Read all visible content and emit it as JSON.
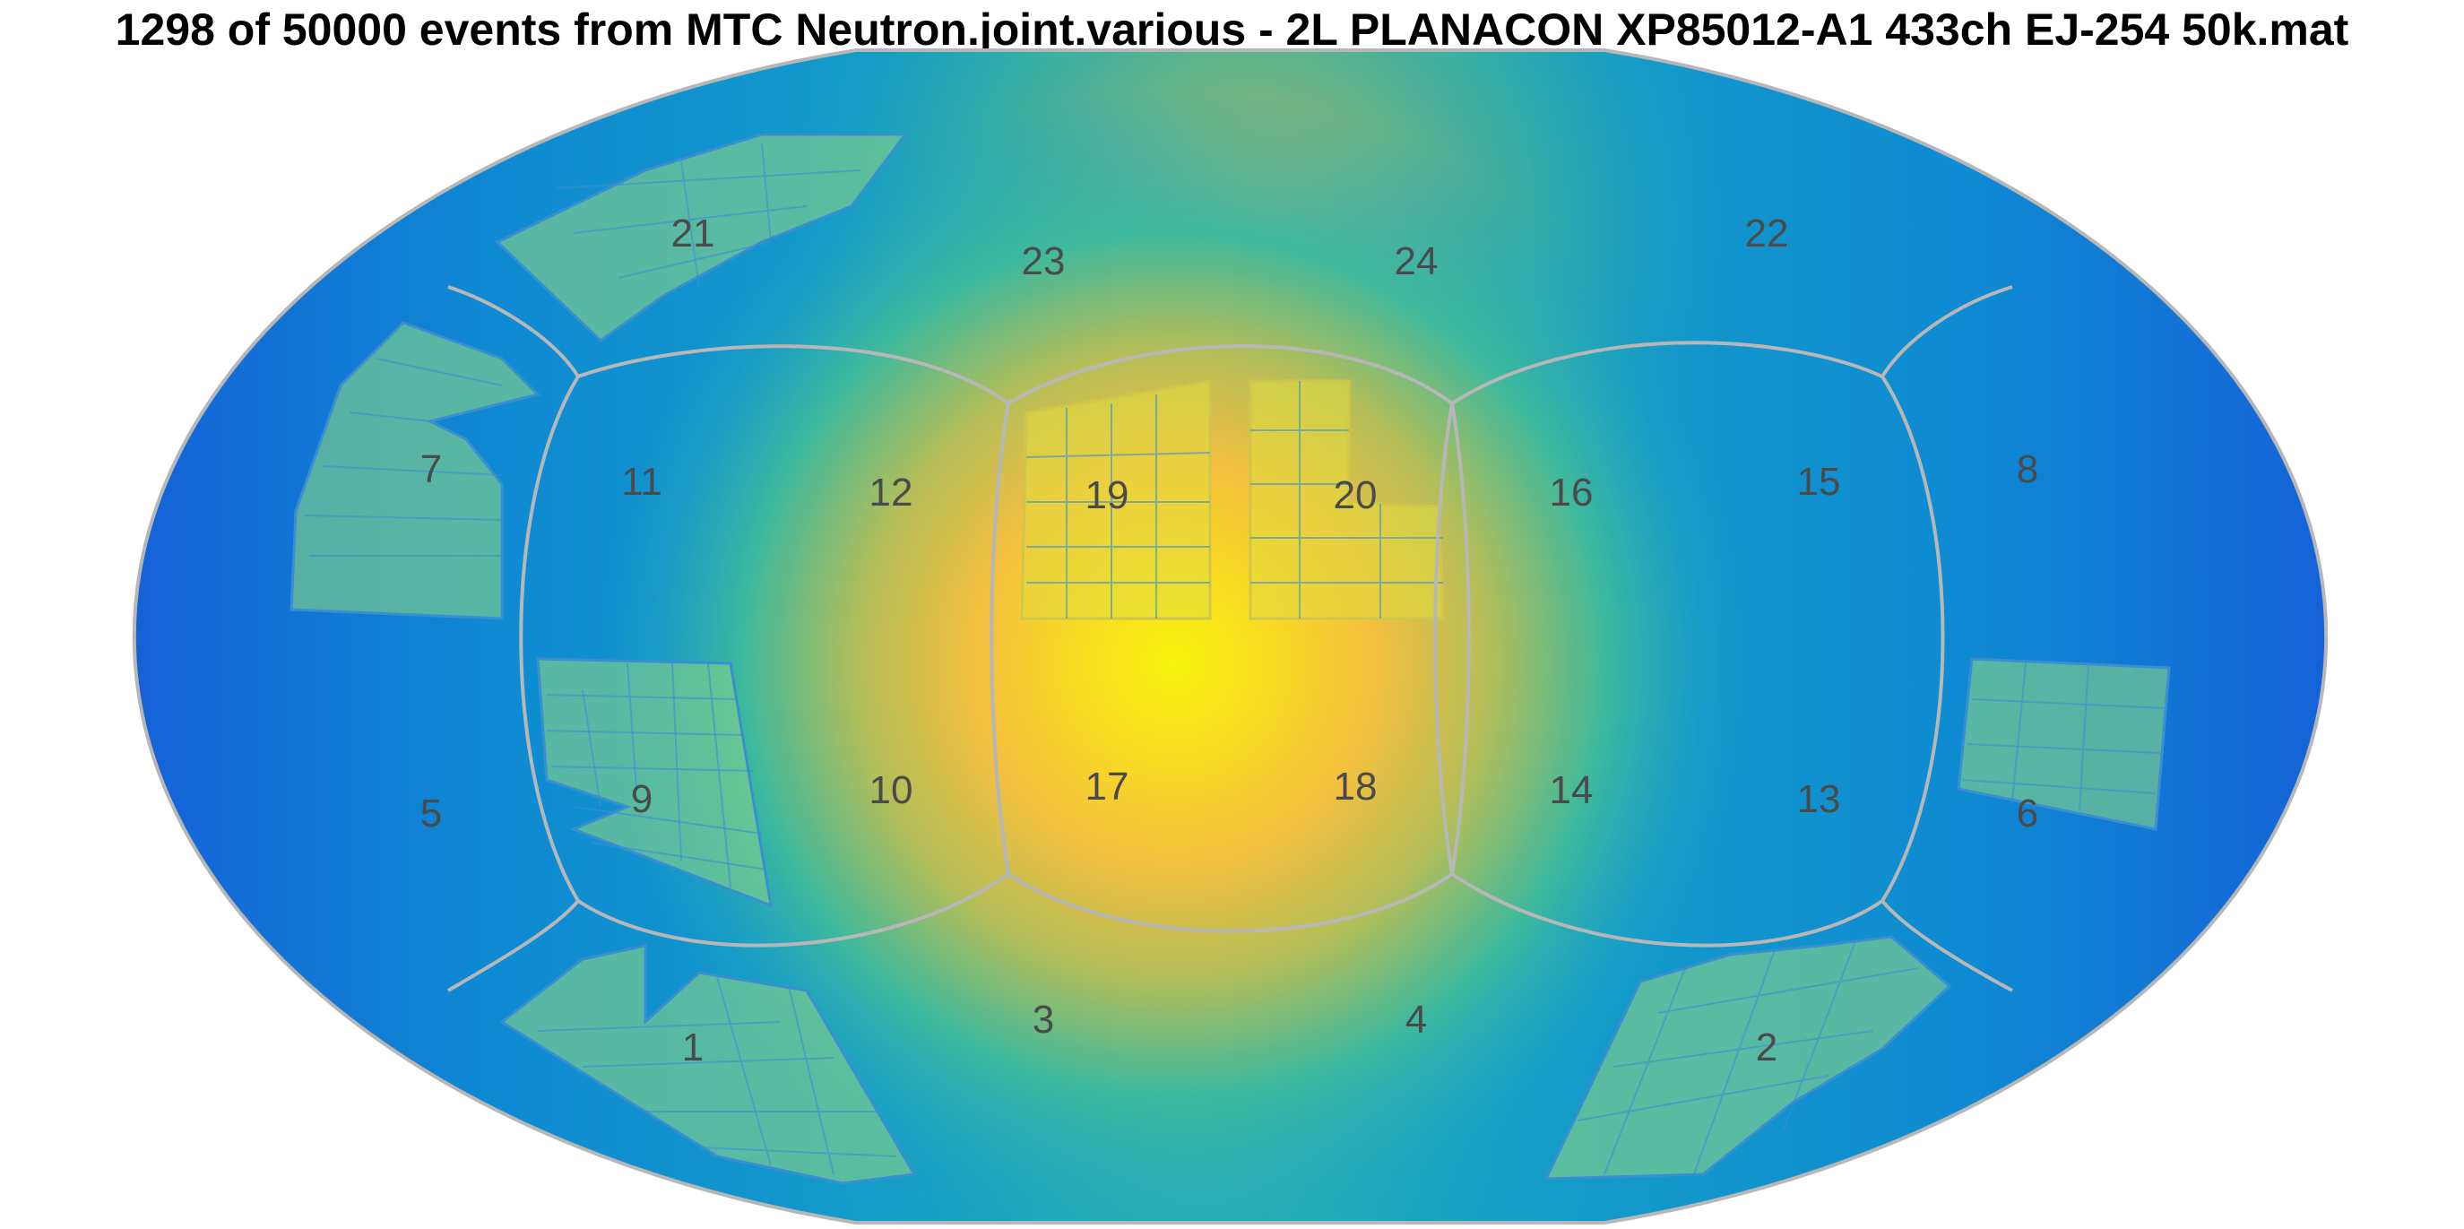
{
  "title": "1298 of 50000 events from MTC Neutron.joint.various - 2L PLANACON XP85012-A1 433ch EJ-254 50k.mat",
  "colors": {
    "hotspot": "#f7f50e",
    "warm": "#f6c63a",
    "mid": "#3dbb9a",
    "cool": "#0f8ad2",
    "edge": "#2b3fb0",
    "pmt_tiles": "#7fcf8a",
    "seams": "#b7b7b7"
  },
  "panels": [
    "1",
    "2",
    "3",
    "4",
    "5",
    "6",
    "7",
    "8",
    "9",
    "10",
    "11",
    "12",
    "13",
    "14",
    "15",
    "16",
    "17",
    "18",
    "19",
    "20",
    "21",
    "22",
    "23",
    "24"
  ]
}
